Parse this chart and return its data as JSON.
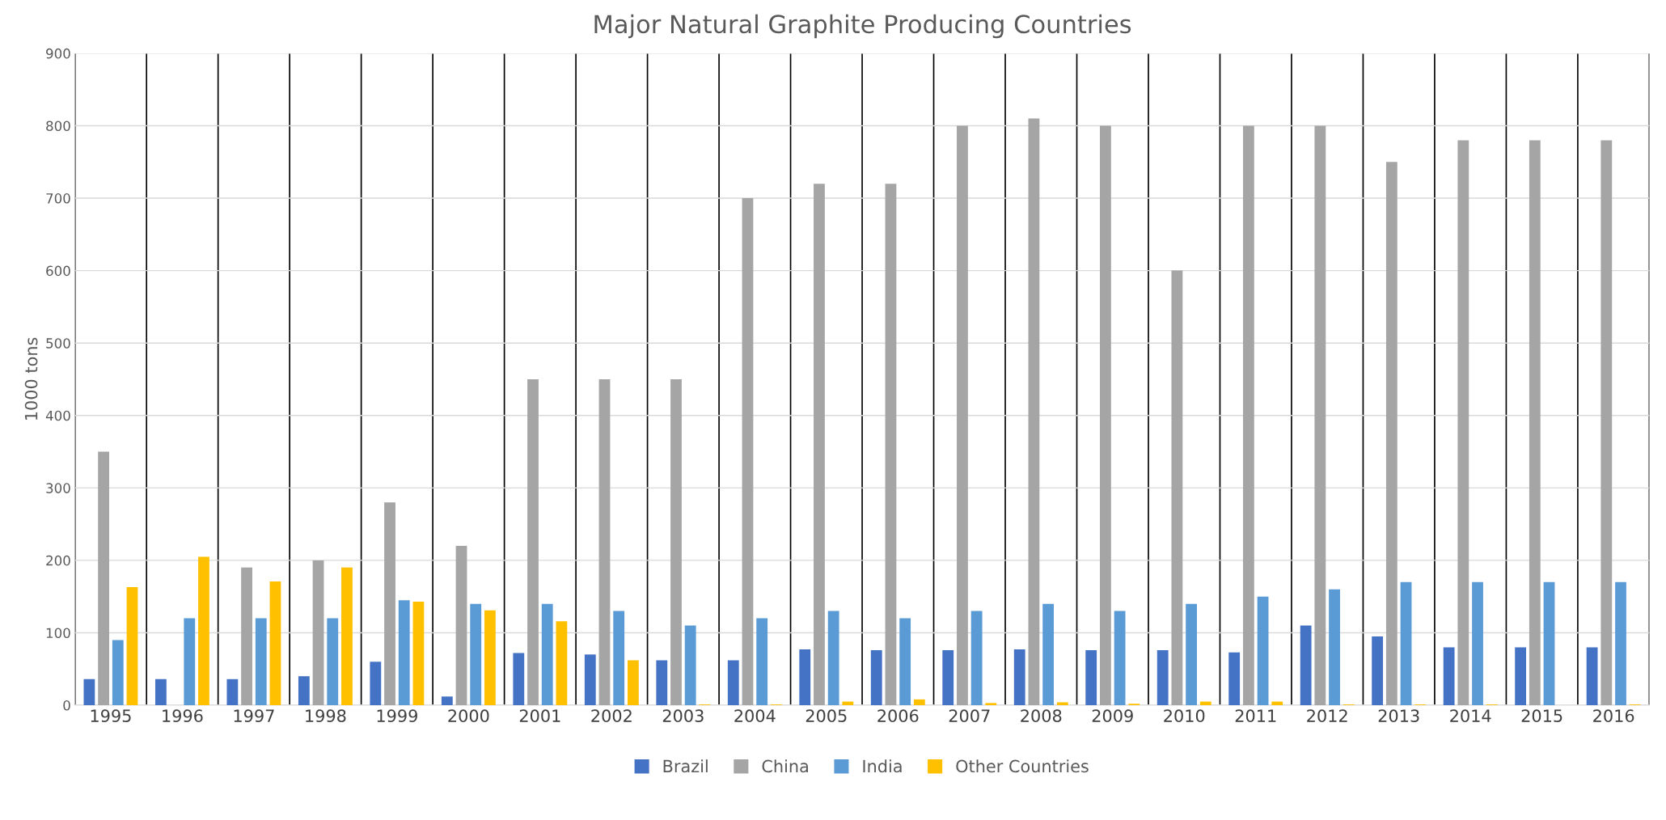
{
  "chart_data": {
    "type": "bar",
    "title": "Major Natural Graphite Producing Countries",
    "ylabel": "1000 tons",
    "categories": [
      "1995",
      "1996",
      "1997",
      "1998",
      "1999",
      "2000",
      "2001",
      "2002",
      "2003",
      "2004",
      "2005",
      "2006",
      "2007",
      "2008",
      "2009",
      "2010",
      "2011",
      "2012",
      "2013",
      "2014",
      "2015",
      "2016"
    ],
    "series": [
      {
        "name": "Brazil",
        "color": "#4472c4",
        "values": [
          36,
          36,
          36,
          40,
          60,
          12,
          72,
          70,
          62,
          62,
          77,
          76,
          76,
          77,
          76,
          76,
          73,
          110,
          95,
          80,
          80,
          80
        ]
      },
      {
        "name": "China",
        "color": "#a5a5a5",
        "values": [
          350,
          null,
          190,
          200,
          280,
          220,
          450,
          450,
          450,
          700,
          720,
          720,
          800,
          810,
          800,
          600,
          800,
          800,
          750,
          780,
          780,
          780
        ]
      },
      {
        "name": "India",
        "color": "#5b9bd5",
        "values": [
          90,
          120,
          120,
          120,
          145,
          140,
          140,
          130,
          110,
          120,
          130,
          120,
          130,
          140,
          130,
          140,
          150,
          160,
          170,
          170,
          170,
          170
        ]
      },
      {
        "name": "Other Countries",
        "color": "#ffc000",
        "values": [
          163,
          205,
          171,
          190,
          143,
          131,
          116,
          62,
          1,
          1,
          5,
          8,
          3,
          4,
          2,
          5,
          5,
          1,
          1,
          1,
          0,
          1
        ]
      }
    ],
    "ylim": [
      0,
      900
    ],
    "yticks": [
      0,
      100,
      200,
      300,
      400,
      500,
      600,
      700,
      800,
      900
    ],
    "grid": true,
    "legend": "bottom"
  }
}
